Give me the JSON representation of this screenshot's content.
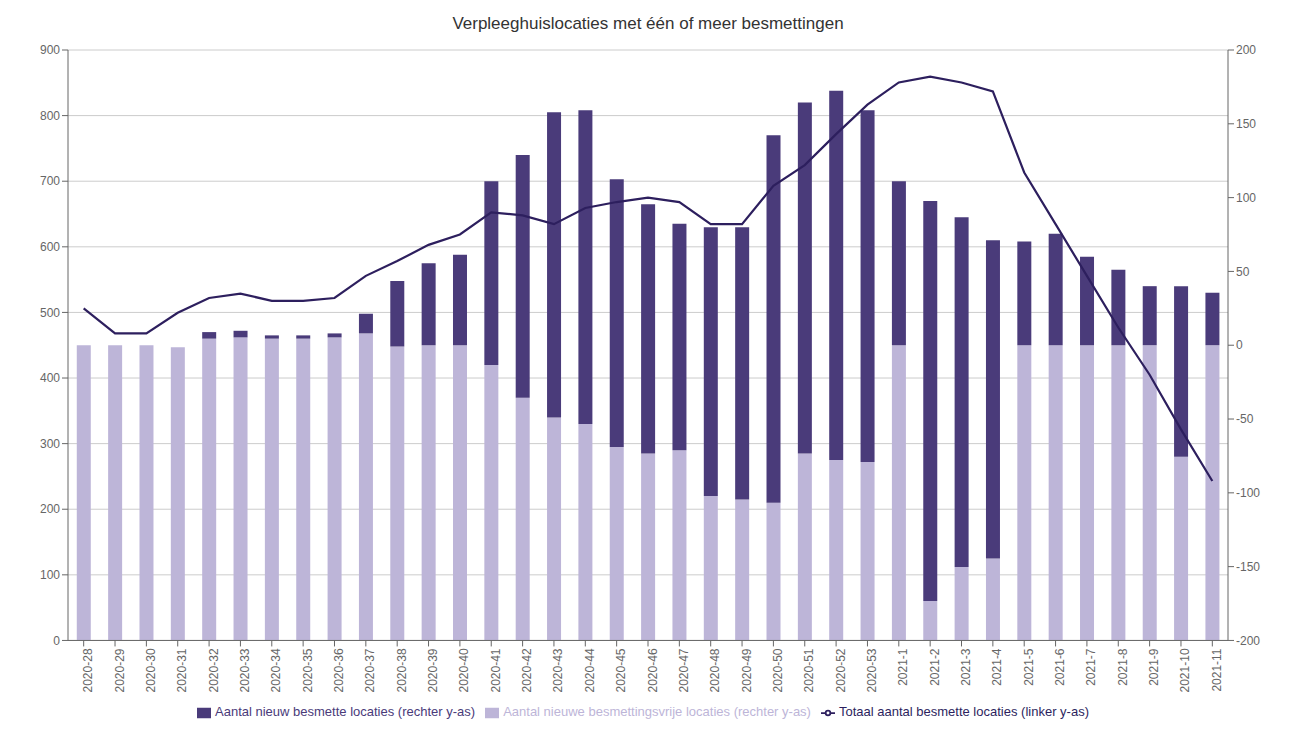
{
  "chart_data": {
    "type": "bar",
    "title": "Verpleeghuislocaties met één of meer besmettingen",
    "categories": [
      "2020-28",
      "2020-29",
      "2020-30",
      "2020-31",
      "2020-32",
      "2020-33",
      "2020-34",
      "2020-35",
      "2020-36",
      "2020-37",
      "2020-38",
      "2020-39",
      "2020-40",
      "2020-41",
      "2020-42",
      "2020-43",
      "2020-44",
      "2020-45",
      "2020-46",
      "2020-47",
      "2020-48",
      "2020-49",
      "2020-50",
      "2020-51",
      "2020-52",
      "2020-53",
      "2021-1",
      "2021-2",
      "2021-3",
      "2021-4",
      "2021-5",
      "2021-6",
      "2021-7",
      "2021-8",
      "2021-9",
      "2021-10",
      "2021-11"
    ],
    "stacked": true,
    "grid": true,
    "legend": "bottom",
    "ylim": [
      0,
      900
    ],
    "yticks": [
      0,
      100,
      200,
      300,
      400,
      500,
      600,
      700,
      800,
      900
    ],
    "y2lim": [
      -200,
      200
    ],
    "y2ticks": [
      -200,
      -150,
      -100,
      -50,
      0,
      50,
      100,
      150,
      200
    ],
    "series": [
      {
        "name": "Aantal nieuwe besmettingsvrije locaties (rechter y-as)",
        "type": "bar",
        "color": "#bdb5d8",
        "values": [
          450,
          450,
          450,
          447,
          460,
          462,
          460,
          460,
          462,
          468,
          448,
          450,
          450,
          420,
          370,
          340,
          330,
          295,
          285,
          290,
          220,
          215,
          210,
          285,
          275,
          272,
          450,
          60,
          112,
          125,
          450,
          450,
          450,
          450,
          450,
          280,
          450
        ]
      },
      {
        "name": "Aantal nieuw besmette locaties (rechter y-as)",
        "type": "bar",
        "color": "#4a3b7a",
        "values": [
          0,
          0,
          0,
          0,
          10,
          10,
          5,
          5,
          6,
          30,
          100,
          125,
          138,
          280,
          370,
          465,
          478,
          408,
          380,
          345,
          410,
          415,
          560,
          535,
          563,
          536,
          250,
          610,
          533,
          485,
          158,
          170,
          135,
          115,
          90,
          260,
          80
        ]
      },
      {
        "name": "Totaal aantal besmette locaties (linker y-as)",
        "type": "line",
        "axis": "y2",
        "color": "#2d1f5e",
        "values": [
          25,
          8,
          8,
          22,
          32,
          35,
          30,
          30,
          32,
          47,
          57,
          68,
          75,
          90,
          88,
          82,
          93,
          97,
          100,
          97,
          82,
          82,
          108,
          122,
          143,
          163,
          178,
          182,
          178,
          172,
          117,
          82,
          47,
          12,
          -20,
          -57,
          -92
        ]
      }
    ]
  }
}
